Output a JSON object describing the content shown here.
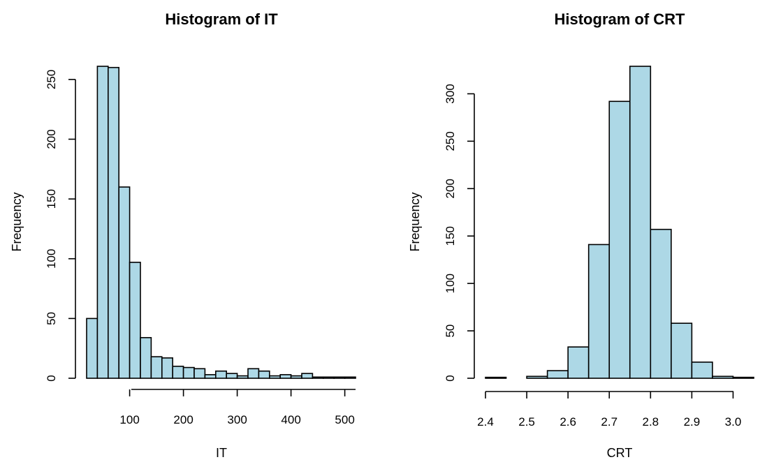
{
  "bar_color": "#add8e6",
  "chart_data": [
    {
      "type": "bar",
      "title": "Histogram of IT",
      "xlabel": "IT",
      "ylabel": "Frequency",
      "bin_width": 20,
      "bins_start": 20,
      "values": [
        50,
        261,
        260,
        160,
        97,
        34,
        18,
        17,
        10,
        9,
        8,
        3,
        6,
        4,
        2,
        8,
        6,
        2,
        3,
        2,
        4,
        1,
        1,
        1,
        1
      ],
      "xlim": [
        20,
        520
      ],
      "ylim": [
        0,
        261
      ],
      "xticks": [
        100,
        200,
        300,
        400,
        500
      ],
      "yticks": [
        0,
        50,
        100,
        150,
        200,
        250
      ]
    },
    {
      "type": "bar",
      "title": "Histogram of CRT",
      "xlabel": "CRT",
      "ylabel": "Frequency",
      "bin_width": 0.05,
      "bins_start": 2.4,
      "values": [
        1,
        0,
        2,
        8,
        33,
        141,
        292,
        329,
        157,
        58,
        17,
        2,
        1
      ],
      "xlim": [
        2.4,
        3.05
      ],
      "ylim": [
        0,
        329
      ],
      "xticks": [
        2.4,
        2.5,
        2.6,
        2.7,
        2.8,
        2.9,
        3.0
      ],
      "xtick_labels": [
        "2.4",
        "2.5",
        "2.6",
        "2.7",
        "2.8",
        "2.9",
        "3.0"
      ],
      "yticks": [
        0,
        50,
        100,
        150,
        200,
        250,
        300
      ]
    }
  ]
}
